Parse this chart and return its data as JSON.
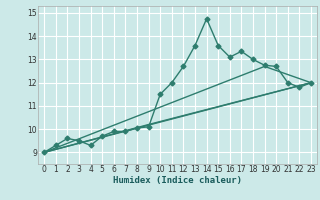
{
  "xlabel": "Humidex (Indice chaleur)",
  "bg_color": "#cce9e8",
  "grid_color": "#ffffff",
  "line_color": "#2e7d6e",
  "xlim": [
    -0.5,
    23.5
  ],
  "ylim": [
    8.5,
    15.3
  ],
  "xticks": [
    0,
    1,
    2,
    3,
    4,
    5,
    6,
    7,
    8,
    9,
    10,
    11,
    12,
    13,
    14,
    15,
    16,
    17,
    18,
    19,
    20,
    21,
    22,
    23
  ],
  "yticks": [
    9,
    10,
    11,
    12,
    13,
    14,
    15
  ],
  "series1_x": [
    0,
    1,
    2,
    3,
    4,
    5,
    6,
    7,
    8,
    9,
    10,
    11,
    12,
    13,
    14,
    15,
    16,
    17,
    18,
    19,
    20,
    21,
    22,
    23
  ],
  "series1_y": [
    9.0,
    9.3,
    9.6,
    9.5,
    9.3,
    9.7,
    9.9,
    9.9,
    10.05,
    10.1,
    11.5,
    12.0,
    12.7,
    13.6,
    14.75,
    13.6,
    13.1,
    13.35,
    13.0,
    12.75,
    12.7,
    12.0,
    11.8,
    12.0
  ],
  "trend1_x": [
    0,
    23
  ],
  "trend1_y": [
    9.0,
    12.0
  ],
  "trend2_x": [
    0,
    9,
    23
  ],
  "trend2_y": [
    9.0,
    10.2,
    12.0
  ],
  "trend3_x": [
    0,
    19,
    23
  ],
  "trend3_y": [
    9.0,
    12.7,
    12.0
  ],
  "marker": "D",
  "marker_size": 2.5,
  "line_width": 1.0
}
